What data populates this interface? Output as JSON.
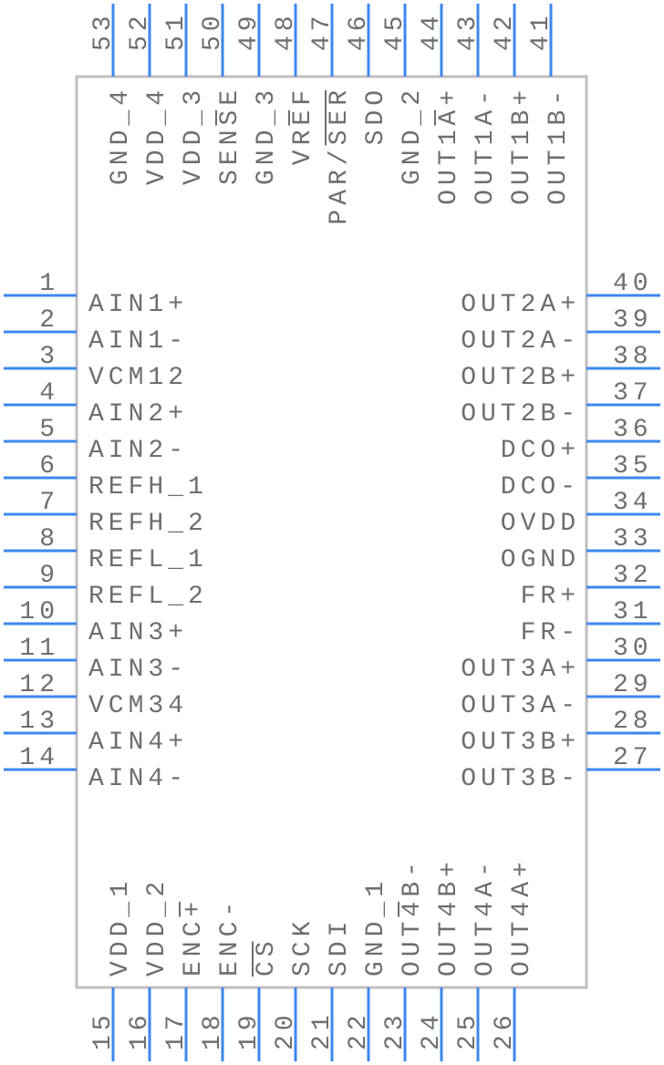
{
  "colors": {
    "pin": "#3c87f0",
    "body_outline": "#bfbfbf",
    "text": "#6e6e6e"
  },
  "pins": {
    "left": [
      {
        "number": "1",
        "label": "AIN1+"
      },
      {
        "number": "2",
        "label": "AIN1-"
      },
      {
        "number": "3",
        "label": "VCM12"
      },
      {
        "number": "4",
        "label": "AIN2+"
      },
      {
        "number": "5",
        "label": "AIN2-"
      },
      {
        "number": "6",
        "label": "REFH_1"
      },
      {
        "number": "7",
        "label": "REFH_2"
      },
      {
        "number": "8",
        "label": "REFL_1"
      },
      {
        "number": "9",
        "label": "REFL_2"
      },
      {
        "number": "10",
        "label": "AIN3+"
      },
      {
        "number": "11",
        "label": "AIN3-"
      },
      {
        "number": "12",
        "label": "VCM34"
      },
      {
        "number": "13",
        "label": "AIN4+"
      },
      {
        "number": "14",
        "label": "AIN4-"
      }
    ],
    "right": [
      {
        "number": "40",
        "label": "OUT2A+"
      },
      {
        "number": "39",
        "label": "OUT2A-"
      },
      {
        "number": "38",
        "label": "OUT2B+"
      },
      {
        "number": "37",
        "label": "OUT2B-"
      },
      {
        "number": "36",
        "label": "DCO+"
      },
      {
        "number": "35",
        "label": "DCO-"
      },
      {
        "number": "34",
        "label": "OVDD"
      },
      {
        "number": "33",
        "label": "OGND"
      },
      {
        "number": "32",
        "label": "FR+"
      },
      {
        "number": "31",
        "label": "FR-"
      },
      {
        "number": "30",
        "label": "OUT3A+"
      },
      {
        "number": "29",
        "label": "OUT3A-"
      },
      {
        "number": "28",
        "label": "OUT3B+"
      },
      {
        "number": "27",
        "label": "OUT3B-"
      }
    ],
    "top": [
      {
        "number": "53",
        "label": "GND_4"
      },
      {
        "number": "52",
        "label": "VDD_4"
      },
      {
        "number": "51",
        "label": "VDD_3"
      },
      {
        "number": "50",
        "label": "SENSE",
        "overbar": [
          3,
          4
        ]
      },
      {
        "number": "49",
        "label": "GND_3"
      },
      {
        "number": "48",
        "label": "VREF",
        "overbar": [
          2,
          3
        ]
      },
      {
        "number": "47",
        "label": "PAR/SER",
        "overbar": [
          4,
          7
        ]
      },
      {
        "number": "46",
        "label": "SDO"
      },
      {
        "number": "45",
        "label": "GND_2"
      },
      {
        "number": "44",
        "label": "OUT1A+",
        "overbar": [
          4,
          5
        ]
      },
      {
        "number": "43",
        "label": "OUT1A-"
      },
      {
        "number": "42",
        "label": "OUT1B+"
      },
      {
        "number": "41",
        "label": "OUT1B-"
      }
    ],
    "bottom": [
      {
        "number": "15",
        "label": "VDD_1"
      },
      {
        "number": "16",
        "label": "VDD_2"
      },
      {
        "number": "17",
        "label": "ENC+",
        "overbar": [
          3,
          4
        ]
      },
      {
        "number": "18",
        "label": "ENC-"
      },
      {
        "number": "19",
        "label": "CS",
        "overbar": [
          0,
          2
        ]
      },
      {
        "number": "20",
        "label": "SCK"
      },
      {
        "number": "21",
        "label": "SDI"
      },
      {
        "number": "22",
        "label": "GND_1"
      },
      {
        "number": "23",
        "label": "OUT4B-",
        "overbar": [
          3,
          4
        ]
      },
      {
        "number": "24",
        "label": "OUT4B+"
      },
      {
        "number": "25",
        "label": "OUT4A-"
      },
      {
        "number": "26",
        "label": "OUT4A+"
      }
    ]
  }
}
